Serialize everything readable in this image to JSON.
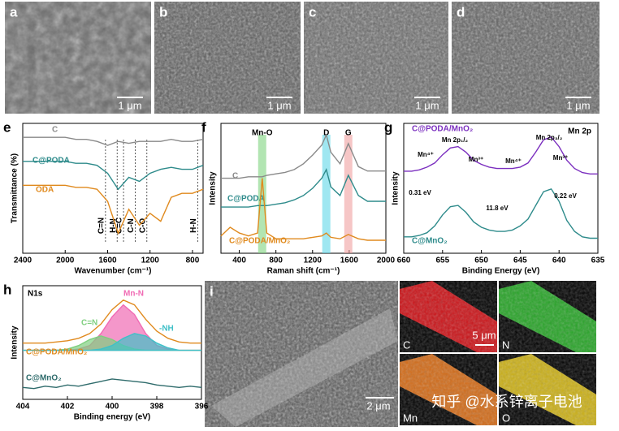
{
  "panels": {
    "sem": [
      {
        "letter": "a",
        "scale": "1 μm"
      },
      {
        "letter": "b",
        "scale": "1 μm"
      },
      {
        "letter": "c",
        "scale": "1 μm"
      },
      {
        "letter": "d",
        "scale": "1 μm"
      }
    ],
    "i": {
      "letter": "i",
      "scale": "2 μm",
      "map_scale": "5 μm",
      "maps": [
        "C",
        "N",
        "Mn",
        "O"
      ]
    },
    "watermark": "知乎 @水系锌离子电池"
  },
  "chart_data": [
    {
      "type": "line",
      "panel": "e",
      "xlabel": "Wavenumber (cm⁻¹)",
      "ylabel": "Transmittance (%)",
      "xlim": [
        2400,
        700
      ],
      "ylim": [
        30,
        95
      ],
      "xticks": [
        2400,
        2000,
        1600,
        1200,
        800
      ],
      "x": [
        2400,
        2300,
        2200,
        2100,
        2000,
        1900,
        1800,
        1700,
        1600,
        1500,
        1400,
        1300,
        1200,
        1100,
        1000,
        900,
        800,
        700
      ],
      "series": [
        {
          "name": "C",
          "color": "#8a8a8a",
          "values": [
            88,
            88,
            88,
            88,
            88,
            87,
            87,
            86,
            84,
            86,
            85,
            86,
            86,
            86,
            87,
            86,
            86,
            87
          ]
        },
        {
          "name": "C@PODA",
          "color": "#2e8b8b",
          "values": [
            76,
            76,
            76,
            76,
            76,
            75,
            75,
            74,
            70,
            62,
            68,
            66,
            70,
            72,
            73,
            72,
            72,
            74
          ]
        },
        {
          "name": "ODA",
          "color": "#e08a1e",
          "values": [
            64,
            64,
            64,
            64,
            64,
            63,
            63,
            62,
            56,
            40,
            52,
            44,
            50,
            46,
            58,
            60,
            60,
            62
          ]
        }
      ],
      "annotations": [
        {
          "text": "C=N",
          "x": 1620
        },
        {
          "text": "H-N",
          "x": 1510
        },
        {
          "text": "C=C",
          "x": 1450
        },
        {
          "text": "C-N",
          "x": 1340
        },
        {
          "text": "C-O",
          "x": 1230
        },
        {
          "text": "H-N",
          "x": 750
        }
      ]
    },
    {
      "type": "line",
      "panel": "f",
      "xlabel": "Raman shift (cm⁻¹)",
      "ylabel": "Intensity",
      "xlim": [
        200,
        2000
      ],
      "ylim": [
        10,
        100
      ],
      "xticks": [
        400,
        800,
        1200,
        1600,
        2000
      ],
      "x": [
        200,
        300,
        400,
        500,
        600,
        650,
        700,
        800,
        900,
        1000,
        1100,
        1200,
        1300,
        1350,
        1400,
        1500,
        1590,
        1700,
        1800,
        1900,
        2000
      ],
      "series": [
        {
          "name": "C",
          "color": "#8a8a8a",
          "values": [
            62,
            62,
            62,
            63,
            63,
            63,
            64,
            65,
            66,
            68,
            72,
            78,
            85,
            92,
            80,
            72,
            86,
            70,
            67,
            67,
            67
          ]
        },
        {
          "name": "C@PODA",
          "color": "#2e8b8b",
          "values": [
            42,
            42,
            42,
            42,
            43,
            43,
            43,
            44,
            45,
            47,
            50,
            55,
            62,
            68,
            56,
            50,
            64,
            50,
            46,
            46,
            46
          ]
        },
        {
          "name": "C@PODA/MnO₂",
          "color": "#e08a1e",
          "values": [
            22,
            28,
            24,
            22,
            24,
            62,
            24,
            20,
            20,
            20,
            20,
            21,
            22,
            24,
            21,
            20,
            23,
            20,
            19,
            19,
            19
          ]
        }
      ],
      "bands": [
        {
          "text": "Mn-O",
          "x": 650,
          "color": "#7fd37f"
        },
        {
          "text": "D",
          "x": 1350,
          "color": "#5fd7e8"
        },
        {
          "text": "G",
          "x": 1590,
          "color": "#f0a0a0"
        }
      ]
    },
    {
      "type": "line",
      "panel": "g",
      "title": "Mn 2p",
      "xlabel": "Binding Energy (eV)",
      "ylabel": "Intensity",
      "xlim": [
        660,
        635
      ],
      "ylim": [
        10,
        105
      ],
      "xticks": [
        660,
        655,
        650,
        645,
        640,
        635
      ],
      "x": [
        660,
        659,
        658,
        657,
        656,
        655,
        654,
        653,
        652,
        651,
        650,
        649,
        648,
        647,
        646,
        645,
        644,
        643,
        642,
        641,
        640,
        639,
        638,
        637,
        636,
        635
      ],
      "series": [
        {
          "name": "C@PODA/MnO₂",
          "color": "#7b2fbf",
          "values": [
            70,
            70,
            71,
            73,
            76,
            82,
            87,
            88,
            84,
            78,
            75,
            73,
            72,
            72,
            72,
            73,
            76,
            84,
            93,
            95,
            88,
            78,
            72,
            69,
            68,
            68
          ]
        },
        {
          "name": "C@MnO₂",
          "color": "#2e8b8b",
          "values": [
            22,
            22,
            23,
            25,
            30,
            38,
            44,
            45,
            40,
            33,
            29,
            27,
            26,
            26,
            27,
            30,
            35,
            45,
            55,
            57,
            48,
            34,
            26,
            22,
            21,
            21
          ]
        }
      ],
      "labels": [
        "Mn 2p₁/₂",
        "Mn 2p₃/₂",
        "Mn⁴⁺",
        "Mn³⁺",
        "Mn⁴⁺",
        "Mn³⁺",
        "0.31 eV",
        "11.8 eV",
        "0.22 eV"
      ]
    },
    {
      "type": "line",
      "panel": "h",
      "title": "N1s",
      "xlabel": "Binding energy (eV)",
      "ylabel": "Intensity",
      "xlim": [
        404,
        396
      ],
      "ylim": [
        5,
        100
      ],
      "xticks": [
        404,
        402,
        400,
        398,
        396
      ],
      "x": [
        404,
        403.5,
        403,
        402.5,
        402,
        401.5,
        401,
        400.5,
        400,
        399.5,
        399,
        398.5,
        398,
        397.5,
        397,
        396.5,
        396
      ],
      "series": [
        {
          "name": "Mn-N",
          "color": "#f06bb4",
          "fill": true,
          "values": [
            46,
            46,
            46,
            46,
            46,
            47,
            50,
            60,
            74,
            84,
            76,
            60,
            50,
            47,
            46,
            46,
            46
          ]
        },
        {
          "name": "C=N",
          "color": "#7fcf7f",
          "fill": true,
          "values": [
            46,
            46,
            46,
            46,
            47,
            50,
            55,
            58,
            55,
            50,
            47,
            46,
            46,
            46,
            46,
            46,
            46
          ]
        },
        {
          "name": "-NH",
          "color": "#40c0c8",
          "fill": true,
          "values": [
            46,
            46,
            46,
            46,
            46,
            46,
            46,
            47,
            50,
            56,
            60,
            58,
            52,
            48,
            46,
            46,
            46
          ]
        },
        {
          "name": "C@PODA/MnO₂",
          "color": "#e08a1e",
          "values": [
            52,
            52,
            52,
            53,
            54,
            56,
            60,
            68,
            80,
            88,
            84,
            72,
            62,
            56,
            53,
            52,
            52
          ]
        },
        {
          "name": "C@MnO₂",
          "color": "#2e6b6b",
          "values": [
            15,
            14,
            16,
            15,
            17,
            16,
            18,
            20,
            22,
            21,
            20,
            19,
            17,
            16,
            15,
            16,
            15
          ]
        }
      ]
    }
  ]
}
